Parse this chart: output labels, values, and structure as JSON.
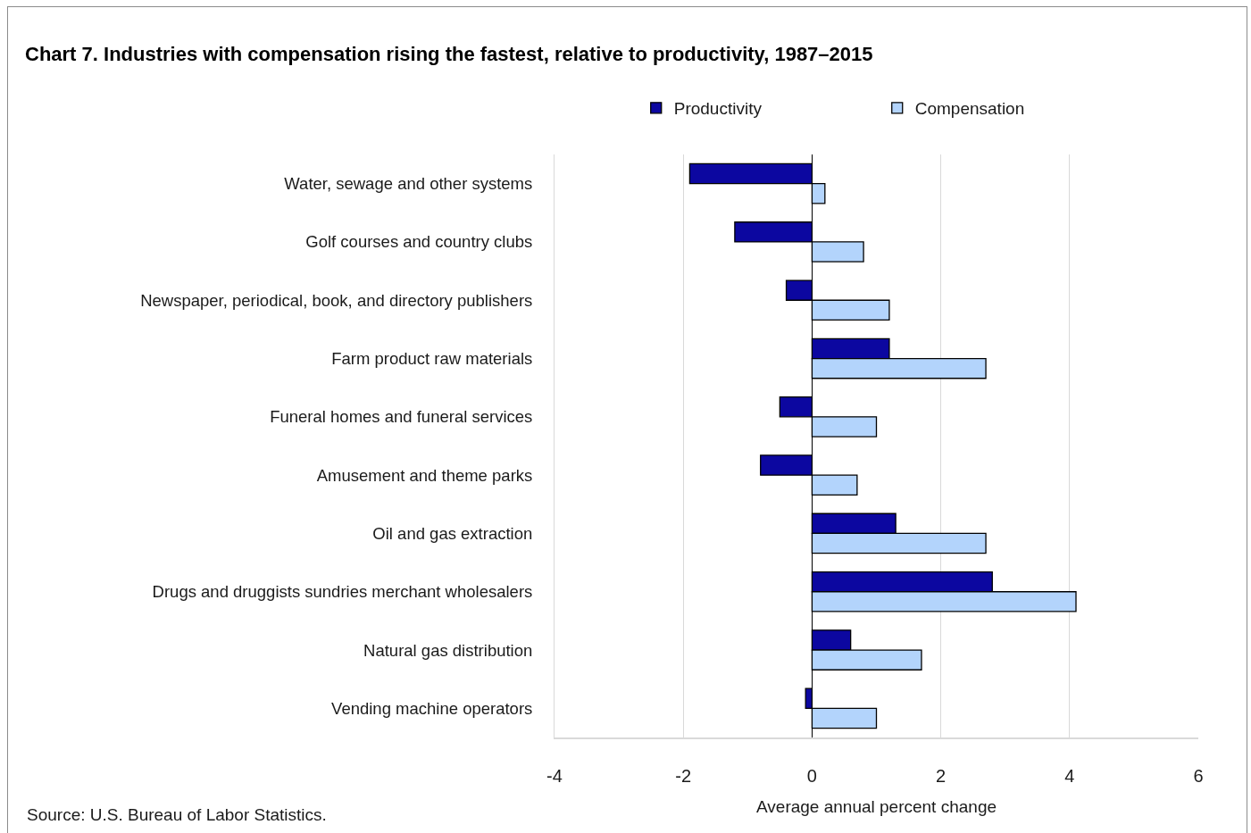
{
  "chart_data": {
    "type": "bar",
    "orientation": "horizontal",
    "title": "Chart 7. Industries with compensation rising the fastest, relative to productivity, 1987–2015",
    "xlabel": "Average annual percent change",
    "annotations": [
      "Source: U.S. Bureau of Labor Statistics."
    ],
    "categories": [
      "Water, sewage and other systems",
      "Golf courses and country clubs",
      "Newspaper, periodical, book, and directory publishers",
      "Farm product raw materials",
      "Funeral homes and funeral services",
      "Amusement and theme parks",
      "Oil and gas extraction",
      "Drugs and druggists sundries merchant wholesalers",
      "Natural gas distribution",
      "Vending machine operators"
    ],
    "series": [
      {
        "name": "Productivity",
        "color": "#0c07a0",
        "values": [
          -1.9,
          -1.2,
          -0.4,
          1.2,
          -0.5,
          -0.8,
          1.3,
          2.8,
          0.6,
          -0.1
        ]
      },
      {
        "name": "Compensation",
        "color": "#b3d4fc",
        "values": [
          0.2,
          0.8,
          1.2,
          2.7,
          1.0,
          0.7,
          2.7,
          4.1,
          1.7,
          1.0
        ]
      }
    ],
    "xlim": [
      -4,
      6
    ],
    "xticks": [
      -4,
      -2,
      0,
      2,
      4,
      6
    ],
    "grid": "x",
    "legend": "top"
  }
}
